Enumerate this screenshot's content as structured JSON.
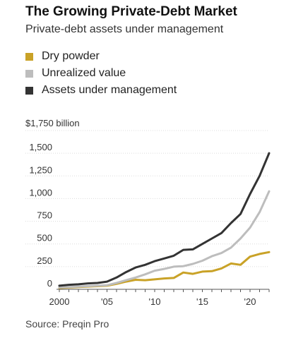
{
  "title": "The Growing Private-Debt Market",
  "subtitle": "Private-debt assets under management",
  "source": "Source: Preqin Pro",
  "chart_data": {
    "type": "line",
    "y_unit_label": "$1,750 billion",
    "ylim": [
      0,
      1750
    ],
    "xlim": [
      2000,
      2022
    ],
    "y_ticks": [
      {
        "value": 0,
        "label": "0"
      },
      {
        "value": 250,
        "label": "250"
      },
      {
        "value": 500,
        "label": "500"
      },
      {
        "value": 750,
        "label": "750"
      },
      {
        "value": 1000,
        "label": "1,000"
      },
      {
        "value": 1250,
        "label": "1,250"
      },
      {
        "value": 1500,
        "label": "1,500"
      }
    ],
    "x_ticks": [
      {
        "value": 2000,
        "label": "2000"
      },
      {
        "value": 2005,
        "label": "'05"
      },
      {
        "value": 2010,
        "label": "'10"
      },
      {
        "value": 2015,
        "label": "'15"
      },
      {
        "value": 2020,
        "label": "'20"
      }
    ],
    "grid": "horizontal",
    "legend_position": "top-left",
    "x": [
      2000,
      2001,
      2002,
      2003,
      2004,
      2005,
      2006,
      2007,
      2008,
      2009,
      2010,
      2011,
      2012,
      2013,
      2014,
      2015,
      2016,
      2017,
      2018,
      2019,
      2020,
      2021,
      2022
    ],
    "series": [
      {
        "name": "Dry powder",
        "color": "#c9a227",
        "values": [
          15,
          20,
          25,
          30,
          35,
          40,
          60,
          85,
          105,
          100,
          110,
          120,
          125,
          185,
          170,
          195,
          200,
          230,
          285,
          270,
          360,
          390,
          410
        ]
      },
      {
        "name": "Unrealized value",
        "color": "#bdbdbd",
        "values": [
          20,
          25,
          30,
          35,
          40,
          45,
          70,
          100,
          130,
          165,
          205,
          225,
          250,
          255,
          280,
          315,
          365,
          400,
          460,
          560,
          680,
          850,
          1080
        ]
      },
      {
        "name": "Assets under management",
        "color": "#333333",
        "values": [
          40,
          50,
          55,
          65,
          70,
          85,
          130,
          190,
          240,
          270,
          310,
          340,
          370,
          435,
          440,
          500,
          560,
          620,
          730,
          830,
          1050,
          1250,
          1500
        ]
      }
    ]
  }
}
